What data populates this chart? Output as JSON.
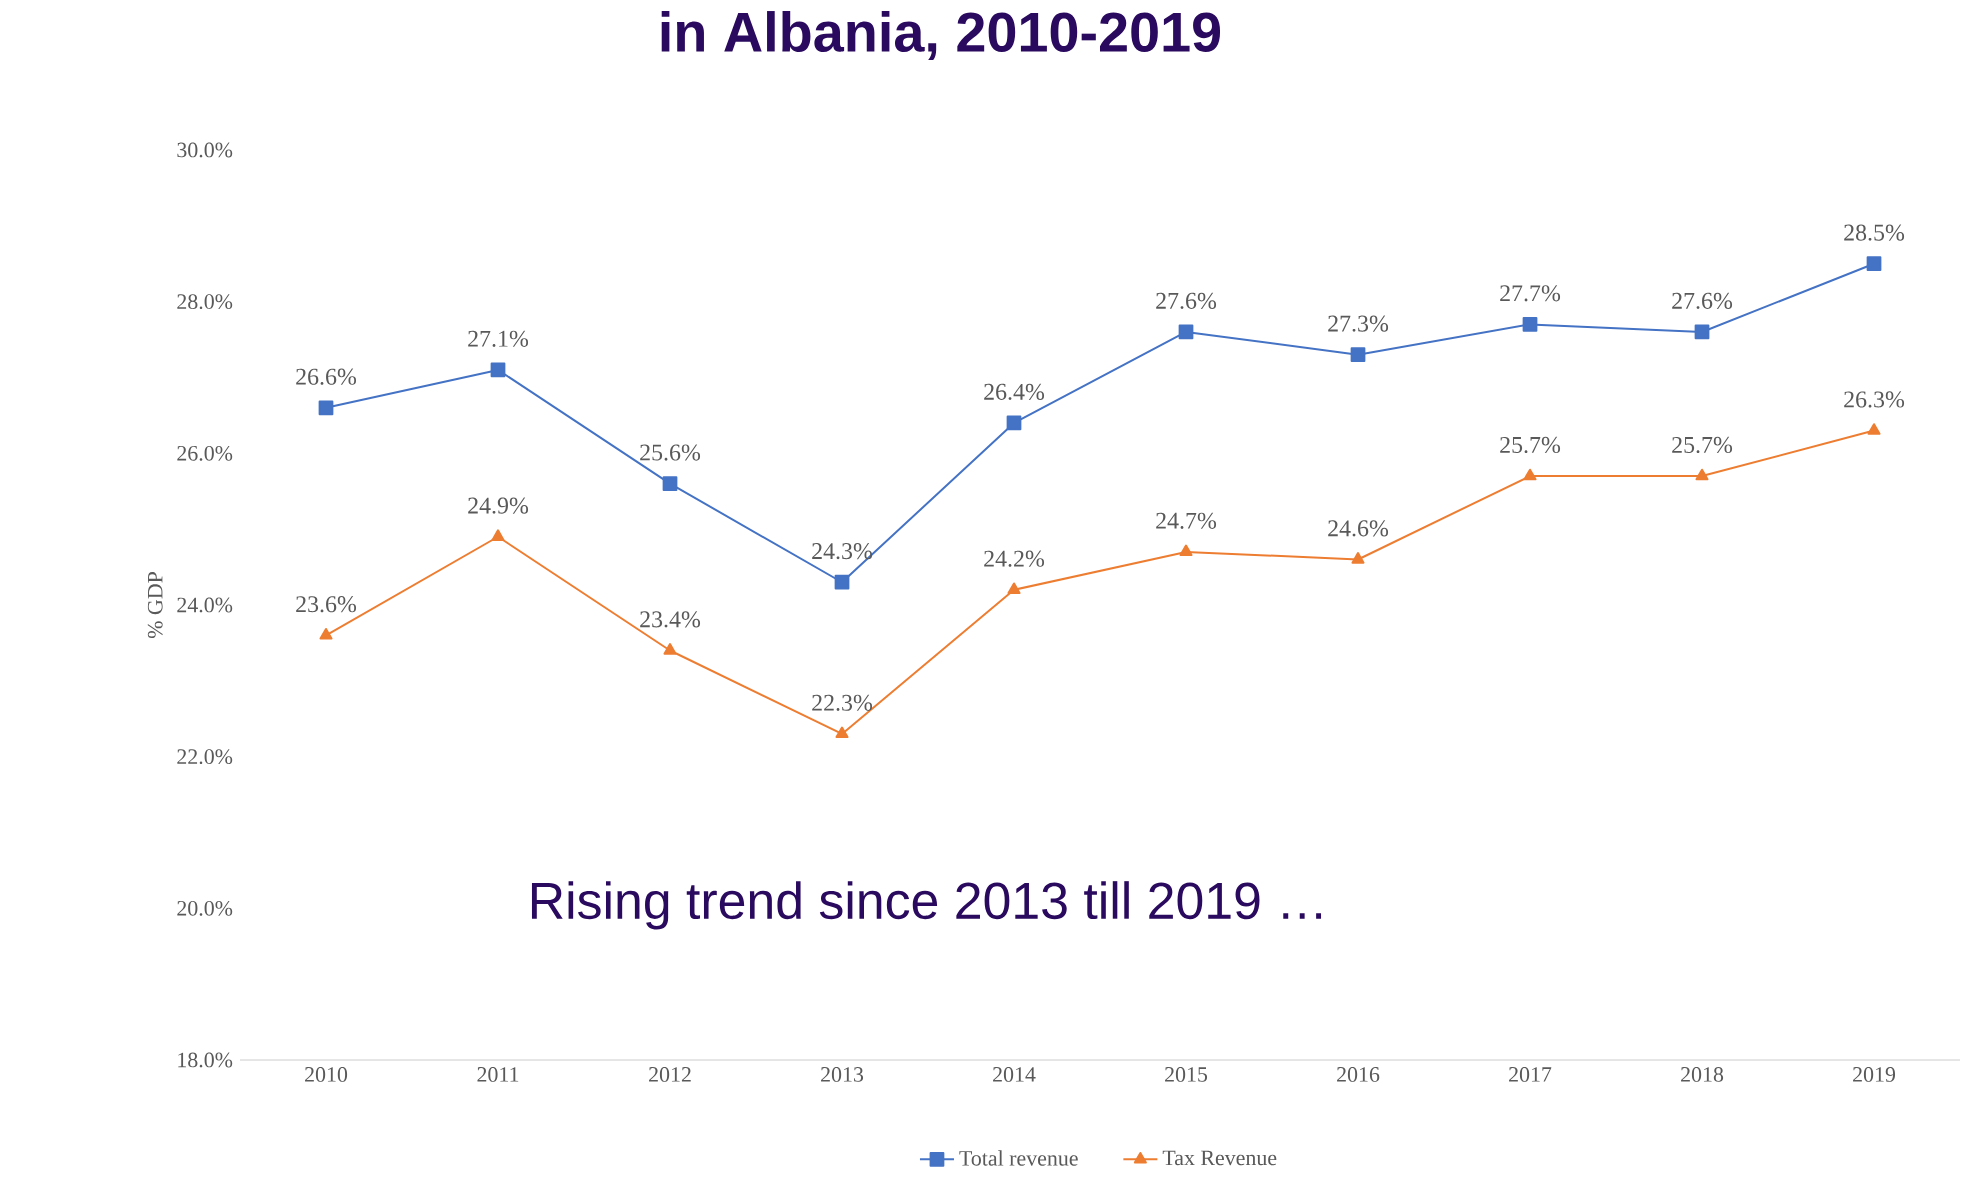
{
  "chart_data": {
    "type": "line",
    "title": "in Albania, 2010-2019",
    "ylabel": "% GDP",
    "annotations": [
      "Rising trend since 2013 till 2019 …"
    ],
    "categories": [
      "2010",
      "2011",
      "2012",
      "2013",
      "2014",
      "2015",
      "2016",
      "2017",
      "2018",
      "2019"
    ],
    "series": [
      {
        "name": "Total revenue",
        "color": "#4472c4",
        "marker": "square",
        "values": [
          26.6,
          27.1,
          25.6,
          24.3,
          26.4,
          27.6,
          27.3,
          27.7,
          27.6,
          28.5
        ],
        "value_labels": [
          "26.6%",
          "27.1%",
          "25.6%",
          "24.3%",
          "26.4%",
          "27.6%",
          "27.3%",
          "27.7%",
          "27.6%",
          "28.5%"
        ]
      },
      {
        "name": "Tax Revenue",
        "color": "#ed7d31",
        "marker": "triangle",
        "values": [
          23.6,
          24.9,
          23.4,
          22.3,
          24.2,
          24.7,
          24.6,
          25.7,
          25.7,
          26.3
        ],
        "value_labels": [
          "23.6%",
          "24.9%",
          "23.4%",
          "22.3%",
          "24.2%",
          "24.7%",
          "24.6%",
          "25.7%",
          "25.7%",
          "26.3%"
        ]
      }
    ],
    "ylim": [
      18,
      30
    ],
    "yticks": [
      {
        "value": 18,
        "label": "18.0%"
      },
      {
        "value": 20,
        "label": "20.0%"
      },
      {
        "value": 22,
        "label": "22.0%"
      },
      {
        "value": 24,
        "label": "24.0%"
      },
      {
        "value": 26,
        "label": "26.0%"
      },
      {
        "value": 28,
        "label": "28.0%"
      },
      {
        "value": 30,
        "label": "30.0%"
      }
    ],
    "grid": false,
    "legend": "bottom",
    "line_style": "solid"
  }
}
